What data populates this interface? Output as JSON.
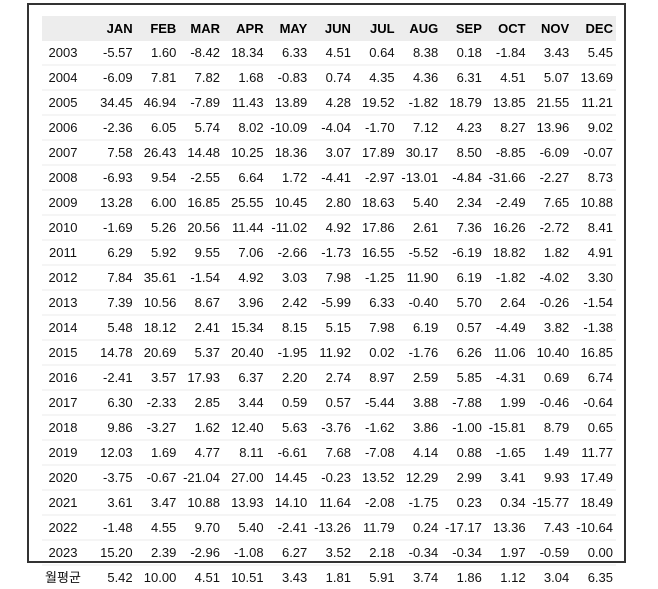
{
  "chart_data": {
    "type": "table",
    "corner_label": "",
    "columns": [
      "JAN",
      "FEB",
      "MAR",
      "APR",
      "MAY",
      "JUN",
      "JUL",
      "AUG",
      "SEP",
      "OCT",
      "NOV",
      "DEC"
    ],
    "rows": [
      {
        "label": "2003",
        "values": [
          "-5.57",
          "1.60",
          "-8.42",
          "18.34",
          "6.33",
          "4.51",
          "0.64",
          "8.38",
          "0.18",
          "-1.84",
          "3.43",
          "5.45"
        ]
      },
      {
        "label": "2004",
        "values": [
          "-6.09",
          "7.81",
          "7.82",
          "1.68",
          "-0.83",
          "0.74",
          "4.35",
          "4.36",
          "6.31",
          "4.51",
          "5.07",
          "13.69"
        ]
      },
      {
        "label": "2005",
        "values": [
          "34.45",
          "46.94",
          "-7.89",
          "11.43",
          "13.89",
          "4.28",
          "19.52",
          "-1.82",
          "18.79",
          "13.85",
          "21.55",
          "11.21"
        ]
      },
      {
        "label": "2006",
        "values": [
          "-2.36",
          "6.05",
          "5.74",
          "8.02",
          "-10.09",
          "-4.04",
          "-1.70",
          "7.12",
          "4.23",
          "8.27",
          "13.96",
          "9.02"
        ]
      },
      {
        "label": "2007",
        "values": [
          "7.58",
          "26.43",
          "14.48",
          "10.25",
          "18.36",
          "3.07",
          "17.89",
          "30.17",
          "8.50",
          "-8.85",
          "-6.09",
          "-0.07"
        ]
      },
      {
        "label": "2008",
        "values": [
          "-6.93",
          "9.54",
          "-2.55",
          "6.64",
          "1.72",
          "-4.41",
          "-2.97",
          "-13.01",
          "-4.84",
          "-31.66",
          "-2.27",
          "8.73"
        ]
      },
      {
        "label": "2009",
        "values": [
          "13.28",
          "6.00",
          "16.85",
          "25.55",
          "10.45",
          "2.80",
          "18.63",
          "5.40",
          "2.34",
          "-2.49",
          "7.65",
          "10.88"
        ]
      },
      {
        "label": "2010",
        "values": [
          "-1.69",
          "5.26",
          "20.56",
          "11.44",
          "-11.02",
          "4.92",
          "17.86",
          "2.61",
          "7.36",
          "16.26",
          "-2.72",
          "8.41"
        ]
      },
      {
        "label": "2011",
        "values": [
          "6.29",
          "5.92",
          "9.55",
          "7.06",
          "-2.66",
          "-1.73",
          "16.55",
          "-5.52",
          "-6.19",
          "18.82",
          "1.82",
          "4.91"
        ]
      },
      {
        "label": "2012",
        "values": [
          "7.84",
          "35.61",
          "-1.54",
          "4.92",
          "3.03",
          "7.98",
          "-1.25",
          "11.90",
          "6.19",
          "-1.82",
          "-4.02",
          "3.30"
        ]
      },
      {
        "label": "2013",
        "values": [
          "7.39",
          "10.56",
          "8.67",
          "3.96",
          "2.42",
          "-5.99",
          "6.33",
          "-0.40",
          "5.70",
          "2.64",
          "-0.26",
          "-1.54"
        ]
      },
      {
        "label": "2014",
        "values": [
          "5.48",
          "18.12",
          "2.41",
          "15.34",
          "8.15",
          "5.15",
          "7.98",
          "6.19",
          "0.57",
          "-4.49",
          "3.82",
          "-1.38"
        ]
      },
      {
        "label": "2015",
        "values": [
          "14.78",
          "20.69",
          "5.37",
          "20.40",
          "-1.95",
          "11.92",
          "0.02",
          "-1.76",
          "6.26",
          "11.06",
          "10.40",
          "16.85"
        ]
      },
      {
        "label": "2016",
        "values": [
          "-2.41",
          "3.57",
          "17.93",
          "6.37",
          "2.20",
          "2.74",
          "8.97",
          "2.59",
          "5.85",
          "-4.31",
          "0.69",
          "6.74"
        ]
      },
      {
        "label": "2017",
        "values": [
          "6.30",
          "-2.33",
          "2.85",
          "3.44",
          "0.59",
          "0.57",
          "-5.44",
          "3.88",
          "-7.88",
          "1.99",
          "-0.46",
          "-0.64"
        ]
      },
      {
        "label": "2018",
        "values": [
          "9.86",
          "-3.27",
          "1.62",
          "12.40",
          "5.63",
          "-3.76",
          "-1.62",
          "3.86",
          "-1.00",
          "-15.81",
          "8.79",
          "0.65"
        ]
      },
      {
        "label": "2019",
        "values": [
          "12.03",
          "1.69",
          "4.77",
          "8.11",
          "-6.61",
          "7.68",
          "-7.08",
          "4.14",
          "0.88",
          "-1.65",
          "1.49",
          "11.77"
        ]
      },
      {
        "label": "2020",
        "values": [
          "-3.75",
          "-0.67",
          "-21.04",
          "27.00",
          "14.45",
          "-0.23",
          "13.52",
          "12.29",
          "2.99",
          "3.41",
          "9.93",
          "17.49"
        ]
      },
      {
        "label": "2021",
        "values": [
          "3.61",
          "3.47",
          "10.88",
          "13.93",
          "14.10",
          "11.64",
          "-2.08",
          "-1.75",
          "0.23",
          "0.34",
          "-15.77",
          "18.49"
        ]
      },
      {
        "label": "2022",
        "values": [
          "-1.48",
          "4.55",
          "9.70",
          "5.40",
          "-2.41",
          "-13.26",
          "11.79",
          "0.24",
          "-17.17",
          "13.36",
          "7.43",
          "-10.64"
        ]
      },
      {
        "label": "2023",
        "values": [
          "15.20",
          "2.39",
          "-2.96",
          "-1.08",
          "6.27",
          "3.52",
          "2.18",
          "-0.34",
          "-0.34",
          "1.97",
          "-0.59",
          "0.00"
        ]
      },
      {
        "label": "월평균",
        "values": [
          "5.42",
          "10.00",
          "4.51",
          "10.51",
          "3.43",
          "1.81",
          "5.91",
          "3.74",
          "1.86",
          "1.12",
          "3.04",
          "6.35"
        ]
      }
    ]
  },
  "colors": {
    "header_bg": "#ededed",
    "frame_border": "#333333",
    "text": "#111111",
    "row_divider": "#f5f5f5",
    "page_bg": "#ffffff"
  }
}
